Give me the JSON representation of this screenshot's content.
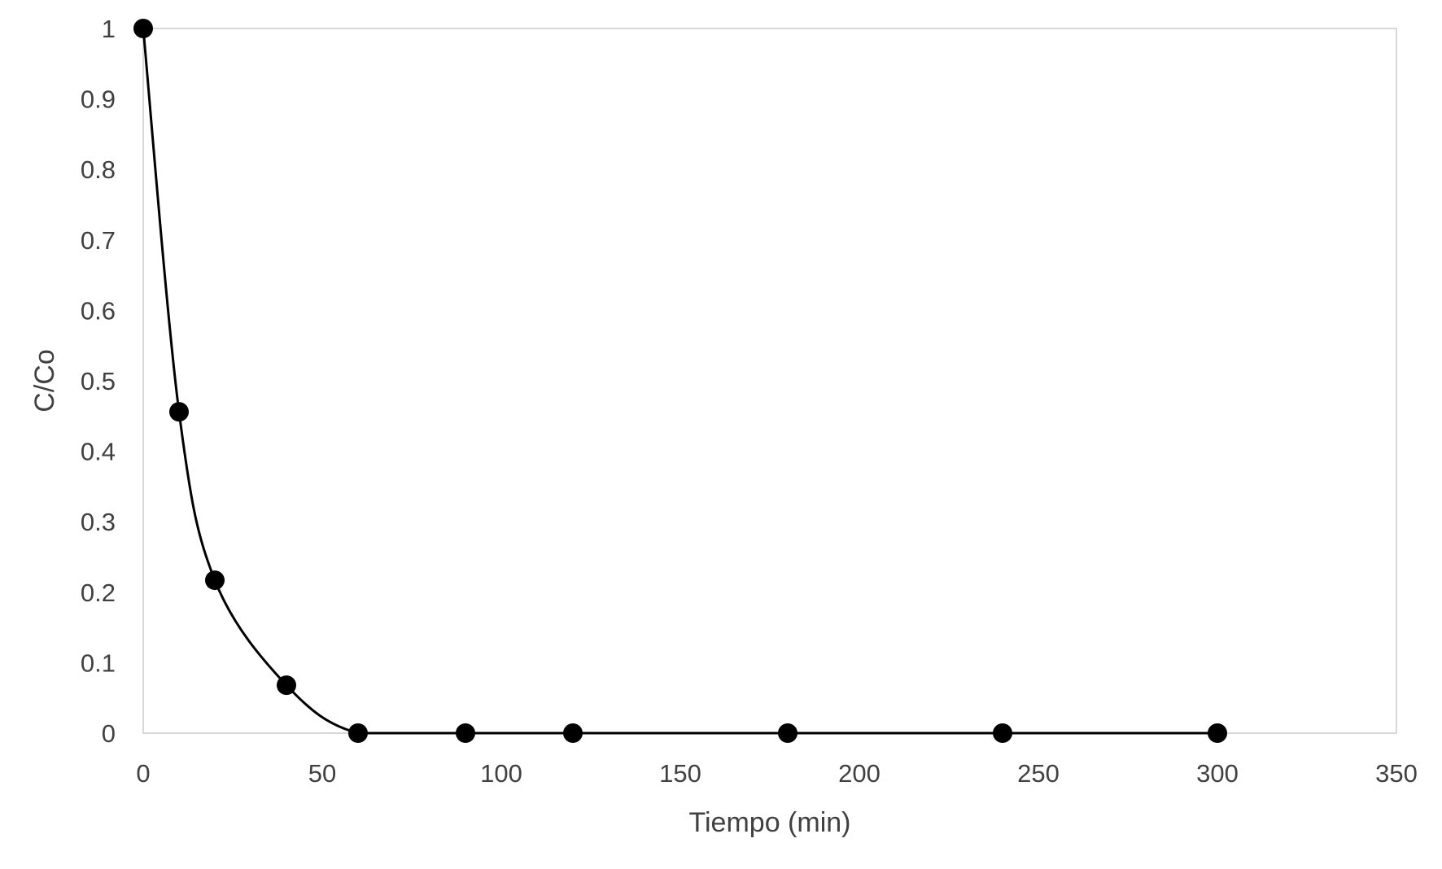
{
  "chart_data": {
    "type": "scatter",
    "title": "",
    "xlabel": "Tiempo (min)",
    "ylabel": "C/Co",
    "xlim": [
      0,
      350
    ],
    "ylim": [
      0,
      1
    ],
    "x_ticks": [
      "0",
      "50",
      "100",
      "150",
      "200",
      "250",
      "300",
      "350"
    ],
    "y_ticks": [
      "0",
      "0.1",
      "0.2",
      "0.3",
      "0.4",
      "0.5",
      "0.6",
      "0.7",
      "0.8",
      "0.9",
      "1"
    ],
    "grid": false,
    "legend": "none",
    "smoothed_line": true,
    "colors": {
      "marker": "#000000",
      "line": "#000000",
      "frame": "#d9d9d9",
      "text": "#404040"
    },
    "series": [
      {
        "x": [
          0,
          10,
          20,
          40,
          60,
          90,
          120,
          180,
          240,
          300
        ],
        "y": [
          1,
          0.456,
          0.217,
          0.068,
          0,
          0,
          0,
          0,
          0,
          0
        ]
      }
    ]
  }
}
